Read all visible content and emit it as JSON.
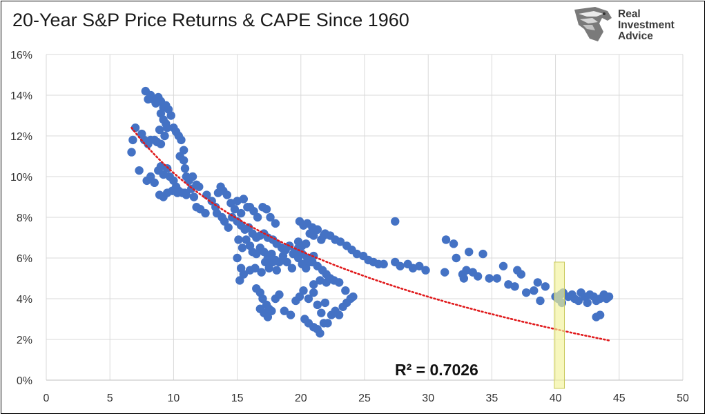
{
  "title": "20-Year S&P Price Returns & CAPE Since 1960",
  "logo": {
    "line1": "Real",
    "line2": "Investment",
    "line3": "Advice"
  },
  "annotation": "R² = 0.7026",
  "colors": {
    "points": "#4472c4",
    "trend": "#e0191b",
    "highlight_fill": "#f3f39a",
    "highlight_stroke": "#c8c85a",
    "grid": "#d9d9d9"
  },
  "chart_data": {
    "type": "scatter",
    "title": "20-Year S&P Price Returns & CAPE Since 1960",
    "xlabel": "",
    "ylabel": "",
    "xlim": [
      0,
      50
    ],
    "ylim": [
      0,
      0.16
    ],
    "x_ticks": [
      0,
      5,
      10,
      15,
      20,
      25,
      30,
      35,
      40,
      45,
      50
    ],
    "y_ticks": [
      0,
      0.02,
      0.04,
      0.06,
      0.08,
      0.1,
      0.12,
      0.14,
      0.16
    ],
    "y_tick_labels": [
      "0%",
      "2%",
      "4%",
      "6%",
      "8%",
      "10%",
      "12%",
      "14%",
      "16%"
    ],
    "grid": true,
    "trendline": {
      "type": "logarithmic",
      "style": "dotted",
      "x_start": 6.7,
      "x_end": 44.2,
      "y_start": 0.124,
      "y_end": 0.0195,
      "r_squared": 0.7026
    },
    "highlight": {
      "x_range": [
        39.9,
        40.7
      ],
      "y_range": [
        0,
        0.058
      ]
    },
    "points": [
      [
        6.7,
        0.112
      ],
      [
        6.8,
        0.118
      ],
      [
        7.0,
        0.124
      ],
      [
        7.3,
        0.103
      ],
      [
        7.5,
        0.121
      ],
      [
        7.7,
        0.118
      ],
      [
        8.0,
        0.116
      ],
      [
        7.8,
        0.142
      ],
      [
        8.0,
        0.138
      ],
      [
        8.2,
        0.14
      ],
      [
        8.4,
        0.138
      ],
      [
        8.6,
        0.136
      ],
      [
        8.8,
        0.139
      ],
      [
        9.0,
        0.137
      ],
      [
        9.2,
        0.134
      ],
      [
        9.4,
        0.135
      ],
      [
        9.6,
        0.133
      ],
      [
        9.8,
        0.13
      ],
      [
        10.0,
        0.124
      ],
      [
        10.2,
        0.122
      ],
      [
        9.0,
        0.131
      ],
      [
        9.2,
        0.128
      ],
      [
        9.4,
        0.126
      ],
      [
        9.5,
        0.124
      ],
      [
        9.3,
        0.12
      ],
      [
        9.0,
        0.116
      ],
      [
        8.9,
        0.123
      ],
      [
        8.5,
        0.118
      ],
      [
        8.2,
        0.118
      ],
      [
        8.7,
        0.117
      ],
      [
        10.4,
        0.12
      ],
      [
        10.6,
        0.118
      ],
      [
        10.8,
        0.113
      ],
      [
        10.5,
        0.11
      ],
      [
        10.8,
        0.108
      ],
      [
        10.9,
        0.104
      ],
      [
        11.0,
        0.1
      ],
      [
        11.2,
        0.098
      ],
      [
        11.5,
        0.1
      ],
      [
        11.8,
        0.096
      ],
      [
        12.0,
        0.095
      ],
      [
        7.9,
        0.098
      ],
      [
        8.2,
        0.1
      ],
      [
        8.5,
        0.097
      ],
      [
        8.8,
        0.103
      ],
      [
        9.0,
        0.105
      ],
      [
        9.2,
        0.101
      ],
      [
        9.5,
        0.104
      ],
      [
        9.7,
        0.1
      ],
      [
        10.0,
        0.098
      ],
      [
        10.2,
        0.095
      ],
      [
        10.4,
        0.093
      ],
      [
        10.7,
        0.092
      ],
      [
        11.0,
        0.091
      ],
      [
        11.4,
        0.094
      ],
      [
        11.6,
        0.09
      ],
      [
        8.9,
        0.091
      ],
      [
        9.2,
        0.09
      ],
      [
        9.5,
        0.092
      ],
      [
        9.9,
        0.093
      ],
      [
        10.3,
        0.092
      ],
      [
        10.9,
        0.092
      ],
      [
        11.8,
        0.085
      ],
      [
        12.1,
        0.084
      ],
      [
        12.6,
        0.091
      ],
      [
        12.5,
        0.082
      ],
      [
        13.0,
        0.088
      ],
      [
        13.3,
        0.085
      ],
      [
        13.5,
        0.092
      ],
      [
        13.7,
        0.095
      ],
      [
        13.9,
        0.093
      ],
      [
        14.2,
        0.091
      ],
      [
        14.5,
        0.087
      ],
      [
        14.8,
        0.084
      ],
      [
        15.0,
        0.088
      ],
      [
        15.3,
        0.082
      ],
      [
        15.5,
        0.089
      ],
      [
        15.8,
        0.085
      ],
      [
        16.0,
        0.085
      ],
      [
        16.3,
        0.083
      ],
      [
        16.6,
        0.08
      ],
      [
        17.0,
        0.085
      ],
      [
        17.3,
        0.084
      ],
      [
        17.6,
        0.08
      ],
      [
        18.0,
        0.077
      ],
      [
        13.4,
        0.082
      ],
      [
        13.8,
        0.08
      ],
      [
        14.0,
        0.078
      ],
      [
        14.3,
        0.075
      ],
      [
        14.6,
        0.08
      ],
      [
        15.0,
        0.078
      ],
      [
        15.3,
        0.076
      ],
      [
        15.6,
        0.074
      ],
      [
        15.9,
        0.075
      ],
      [
        16.2,
        0.072
      ],
      [
        16.5,
        0.07
      ],
      [
        16.8,
        0.071
      ],
      [
        17.1,
        0.072
      ],
      [
        17.4,
        0.07
      ],
      [
        17.8,
        0.069
      ],
      [
        18.1,
        0.067
      ],
      [
        18.5,
        0.065
      ],
      [
        18.8,
        0.064
      ],
      [
        19.1,
        0.066
      ],
      [
        19.4,
        0.062
      ],
      [
        19.8,
        0.065
      ],
      [
        15.1,
        0.069
      ],
      [
        15.4,
        0.065
      ],
      [
        15.7,
        0.069
      ],
      [
        16.0,
        0.066
      ],
      [
        16.2,
        0.063
      ],
      [
        16.5,
        0.062
      ],
      [
        16.8,
        0.065
      ],
      [
        17.1,
        0.063
      ],
      [
        17.4,
        0.06
      ],
      [
        17.7,
        0.062
      ],
      [
        18.0,
        0.059
      ],
      [
        18.3,
        0.058
      ],
      [
        18.6,
        0.061
      ],
      [
        15.0,
        0.06
      ],
      [
        15.3,
        0.055
      ],
      [
        15.5,
        0.052
      ],
      [
        15.2,
        0.049
      ],
      [
        16.0,
        0.054
      ],
      [
        16.4,
        0.055
      ],
      [
        16.9,
        0.053
      ],
      [
        17.2,
        0.058
      ],
      [
        17.5,
        0.055
      ],
      [
        17.8,
        0.058
      ],
      [
        18.1,
        0.054
      ],
      [
        16.5,
        0.045
      ],
      [
        16.8,
        0.043
      ],
      [
        17.0,
        0.04
      ],
      [
        17.3,
        0.037
      ],
      [
        17.5,
        0.035
      ],
      [
        17.1,
        0.033
      ],
      [
        16.8,
        0.035
      ],
      [
        17.4,
        0.031
      ],
      [
        17.7,
        0.034
      ],
      [
        18.0,
        0.04
      ],
      [
        18.3,
        0.042
      ],
      [
        18.7,
        0.034
      ],
      [
        19.2,
        0.032
      ],
      [
        19.6,
        0.039
      ],
      [
        19.9,
        0.041
      ],
      [
        20.2,
        0.044
      ],
      [
        20.6,
        0.04
      ],
      [
        21.0,
        0.043
      ],
      [
        21.3,
        0.037
      ],
      [
        21.6,
        0.033
      ],
      [
        21.9,
        0.038
      ],
      [
        20.3,
        0.03
      ],
      [
        20.6,
        0.028
      ],
      [
        21.0,
        0.026
      ],
      [
        21.3,
        0.025
      ],
      [
        21.5,
        0.023
      ],
      [
        21.8,
        0.028
      ],
      [
        22.1,
        0.028
      ],
      [
        22.4,
        0.032
      ],
      [
        22.7,
        0.034
      ],
      [
        23.0,
        0.032
      ],
      [
        23.3,
        0.036
      ],
      [
        23.6,
        0.038
      ],
      [
        23.9,
        0.04
      ],
      [
        24.1,
        0.041
      ],
      [
        23.5,
        0.044
      ],
      [
        23.0,
        0.048
      ],
      [
        19.8,
        0.068
      ],
      [
        20.1,
        0.066
      ],
      [
        20.4,
        0.067
      ],
      [
        20.7,
        0.072
      ],
      [
        21.0,
        0.071
      ],
      [
        21.3,
        0.074
      ],
      [
        21.6,
        0.069
      ],
      [
        21.9,
        0.072
      ],
      [
        22.3,
        0.071
      ],
      [
        22.7,
        0.069
      ],
      [
        23.1,
        0.068
      ],
      [
        23.6,
        0.066
      ],
      [
        24.0,
        0.064
      ],
      [
        24.4,
        0.062
      ],
      [
        24.9,
        0.061
      ],
      [
        25.3,
        0.059
      ],
      [
        25.7,
        0.058
      ],
      [
        26.1,
        0.057
      ],
      [
        26.5,
        0.057
      ],
      [
        19.9,
        0.078
      ],
      [
        20.2,
        0.076
      ],
      [
        20.5,
        0.077
      ],
      [
        20.9,
        0.075
      ],
      [
        21.3,
        0.074
      ],
      [
        21.8,
        0.071
      ],
      [
        20.1,
        0.062
      ],
      [
        20.5,
        0.06
      ],
      [
        20.9,
        0.058
      ],
      [
        21.3,
        0.056
      ],
      [
        21.7,
        0.054
      ],
      [
        22.0,
        0.052
      ],
      [
        22.3,
        0.05
      ],
      [
        22.6,
        0.049
      ],
      [
        23.0,
        0.048
      ],
      [
        21.0,
        0.047
      ],
      [
        21.5,
        0.049
      ],
      [
        22.0,
        0.048
      ],
      [
        19.5,
        0.063
      ],
      [
        19.8,
        0.06
      ],
      [
        20.1,
        0.057
      ],
      [
        20.4,
        0.055
      ],
      [
        20.7,
        0.058
      ],
      [
        21.0,
        0.061
      ],
      [
        18.9,
        0.058
      ],
      [
        19.3,
        0.055
      ],
      [
        27.4,
        0.078
      ],
      [
        27.4,
        0.058
      ],
      [
        27.8,
        0.056
      ],
      [
        28.4,
        0.057
      ],
      [
        28.8,
        0.055
      ],
      [
        29.3,
        0.056
      ],
      [
        29.8,
        0.054
      ],
      [
        31.3,
        0.053
      ],
      [
        31.4,
        0.069
      ],
      [
        32.0,
        0.067
      ],
      [
        32.2,
        0.06
      ],
      [
        32.7,
        0.052
      ],
      [
        33.0,
        0.054
      ],
      [
        32.8,
        0.05
      ],
      [
        33.2,
        0.063
      ],
      [
        33.5,
        0.053
      ],
      [
        33.9,
        0.051
      ],
      [
        34.3,
        0.062
      ],
      [
        34.8,
        0.05
      ],
      [
        35.4,
        0.05
      ],
      [
        35.9,
        0.056
      ],
      [
        36.3,
        0.047
      ],
      [
        36.8,
        0.046
      ],
      [
        37.0,
        0.054
      ],
      [
        37.3,
        0.052
      ],
      [
        37.7,
        0.043
      ],
      [
        38.3,
        0.044
      ],
      [
        38.6,
        0.048
      ],
      [
        38.8,
        0.039
      ],
      [
        39.2,
        0.046
      ],
      [
        40.0,
        0.041
      ],
      [
        40.2,
        0.04
      ],
      [
        40.4,
        0.042
      ],
      [
        40.5,
        0.038
      ],
      [
        40.6,
        0.043
      ],
      [
        41.0,
        0.041
      ],
      [
        41.3,
        0.042
      ],
      [
        41.5,
        0.04
      ],
      [
        41.8,
        0.039
      ],
      [
        42.0,
        0.043
      ],
      [
        42.3,
        0.041
      ],
      [
        42.5,
        0.038
      ],
      [
        42.7,
        0.042
      ],
      [
        43.0,
        0.041
      ],
      [
        43.2,
        0.039
      ],
      [
        43.5,
        0.04
      ],
      [
        43.8,
        0.042
      ],
      [
        44.0,
        0.04
      ],
      [
        44.2,
        0.041
      ],
      [
        43.2,
        0.031
      ],
      [
        43.5,
        0.032
      ]
    ]
  }
}
